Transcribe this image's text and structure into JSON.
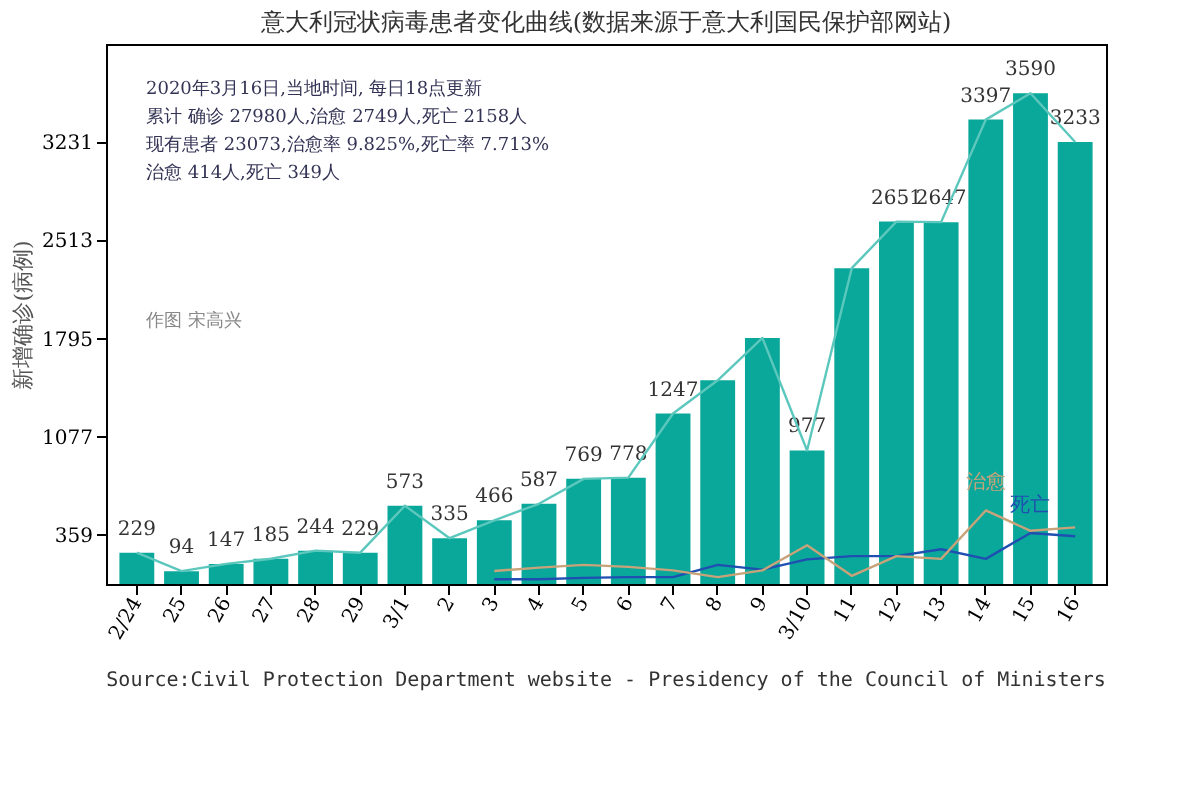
{
  "chart_data": {
    "type": "bar",
    "title": "意大利冠状病毒患者变化曲线(数据来源于意大利国民保护部网站)",
    "ylabel": "新增确诊(病例)",
    "categories": [
      "2/24",
      "25",
      "26",
      "27",
      "28",
      "29",
      "3/1",
      "2",
      "3",
      "4",
      "5",
      "6",
      "7",
      "8",
      "9",
      "3/10",
      "11",
      "12",
      "13",
      "14",
      "15",
      "16"
    ],
    "series": [
      {
        "color": "#0aa89a",
        "values": [
          229,
          94,
          147,
          185,
          244,
          229,
          573,
          335,
          466,
          587,
          769,
          778,
          1247,
          1490,
          1800,
          977,
          2310,
          2651,
          2647,
          3397,
          3590,
          3233
        ],
        "value_labels": [
          "229",
          "94",
          "147",
          "185",
          "244",
          "229",
          "573",
          "335",
          "466",
          "587",
          "769",
          "778",
          "1247",
          null,
          null,
          "977",
          null,
          "2651",
          "2647",
          "3397",
          "3590",
          "3233"
        ]
      },
      {
        "type": "line",
        "color": "#5cc7bd",
        "values": [
          229,
          94,
          147,
          185,
          244,
          229,
          573,
          335,
          466,
          587,
          769,
          778,
          1247,
          1490,
          1800,
          977,
          2310,
          2651,
          2647,
          3397,
          3590,
          3233
        ]
      },
      {
        "type": "line",
        "name": "死亡",
        "color": "#1f4fb0",
        "values": [
          null,
          null,
          null,
          null,
          null,
          null,
          null,
          null,
          35,
          35,
          45,
          50,
          50,
          140,
          105,
          180,
          204,
          204,
          254,
          184,
          373,
          349
        ]
      },
      {
        "type": "line",
        "name": "治愈",
        "color": "#c8a37a",
        "values": [
          null,
          null,
          null,
          null,
          null,
          null,
          null,
          null,
          95,
          120,
          140,
          125,
          100,
          50,
          100,
          284,
          60,
          204,
          184,
          538,
          389,
          414
        ]
      }
    ],
    "ylim": [
      0,
      3950
    ],
    "yticks": [
      359,
      1077,
      1795,
      2513,
      3231
    ],
    "annotations": [
      "2020年3月16日,当地时间, 每日18点更新",
      "累计 确诊 27980人,治愈 2749人,死亡 2158人",
      "现有患者 23073,治愈率 9.825%,死亡率 7.713%",
      "治愈 414人,死亡 349人",
      "作图 宋高兴",
      "Source:Civil Protection Department website - Presidency of the Council of Ministers"
    ]
  }
}
